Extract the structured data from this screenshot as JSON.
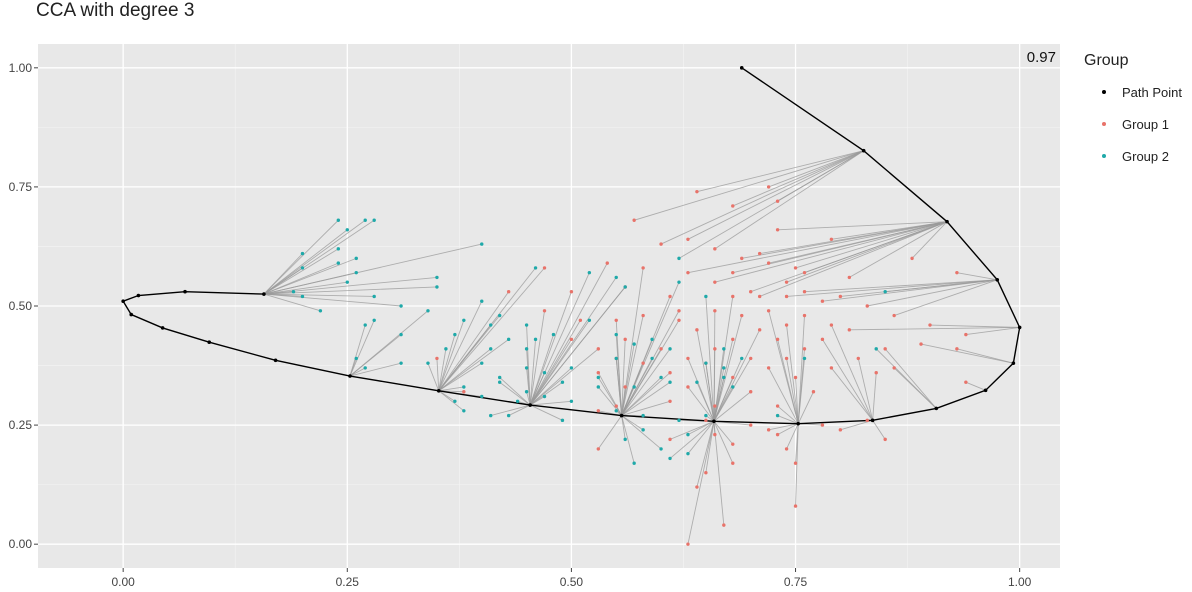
{
  "chart_data": {
    "type": "scatter",
    "title": "CCA with degree 3",
    "annotation": "0.97",
    "xlim": [
      -0.095,
      1.045
    ],
    "ylim": [
      -0.05,
      1.05
    ],
    "x_ticks": [
      0,
      0.25,
      0.5,
      0.75,
      1
    ],
    "x_tick_labels": [
      "0.00",
      "0.25",
      "0.50",
      "0.75",
      "1.00"
    ],
    "y_ticks": [
      0,
      0.25,
      0.5,
      0.75,
      1
    ],
    "y_tick_labels": [
      "0.00",
      "0.25",
      "0.50",
      "0.75",
      "1.00"
    ],
    "grid": true,
    "legend": {
      "title": "Group",
      "placement": "right",
      "items": [
        {
          "label": "Path Point",
          "color": "#000000"
        },
        {
          "label": "Group 1",
          "color": "#e8736a"
        },
        {
          "label": "Group 2",
          "color": "#1fa9a9"
        }
      ]
    },
    "path": [
      [
        0.69,
        1.0
      ],
      [
        0.826,
        0.826
      ],
      [
        0.919,
        0.677
      ],
      [
        0.975,
        0.555
      ],
      [
        1.0,
        0.455
      ],
      [
        0.993,
        0.38
      ],
      [
        0.962,
        0.323
      ],
      [
        0.907,
        0.285
      ],
      [
        0.836,
        0.26
      ],
      [
        0.753,
        0.253
      ],
      [
        0.659,
        0.258
      ],
      [
        0.556,
        0.27
      ],
      [
        0.454,
        0.292
      ],
      [
        0.352,
        0.322
      ],
      [
        0.253,
        0.353
      ],
      [
        0.17,
        0.386
      ],
      [
        0.096,
        0.424
      ],
      [
        0.044,
        0.454
      ],
      [
        0.009,
        0.482
      ],
      [
        0.0,
        0.51
      ],
      [
        0.017,
        0.522
      ],
      [
        0.069,
        0.53
      ],
      [
        0.157,
        0.525
      ]
    ],
    "group1": [
      [
        0.72,
        0.75
      ],
      [
        0.64,
        0.74
      ],
      [
        0.73,
        0.72
      ],
      [
        0.68,
        0.71
      ],
      [
        0.57,
        0.68
      ],
      [
        0.73,
        0.66
      ],
      [
        0.63,
        0.64
      ],
      [
        0.79,
        0.64
      ],
      [
        0.6,
        0.63
      ],
      [
        0.66,
        0.62
      ],
      [
        0.71,
        0.61
      ],
      [
        0.69,
        0.6
      ],
      [
        0.72,
        0.59
      ],
      [
        0.88,
        0.6
      ],
      [
        0.54,
        0.59
      ],
      [
        0.47,
        0.58
      ],
      [
        0.58,
        0.58
      ],
      [
        0.75,
        0.58
      ],
      [
        0.63,
        0.57
      ],
      [
        0.68,
        0.57
      ],
      [
        0.76,
        0.57
      ],
      [
        0.93,
        0.57
      ],
      [
        0.81,
        0.56
      ],
      [
        0.66,
        0.55
      ],
      [
        0.74,
        0.55
      ],
      [
        0.5,
        0.53
      ],
      [
        0.56,
        0.54
      ],
      [
        0.7,
        0.53
      ],
      [
        0.76,
        0.53
      ],
      [
        0.43,
        0.53
      ],
      [
        0.61,
        0.52
      ],
      [
        0.68,
        0.52
      ],
      [
        0.71,
        0.52
      ],
      [
        0.74,
        0.52
      ],
      [
        0.8,
        0.52
      ],
      [
        0.78,
        0.51
      ],
      [
        0.47,
        0.49
      ],
      [
        0.62,
        0.49
      ],
      [
        0.66,
        0.49
      ],
      [
        0.72,
        0.49
      ],
      [
        0.83,
        0.5
      ],
      [
        0.58,
        0.48
      ],
      [
        0.69,
        0.48
      ],
      [
        0.76,
        0.48
      ],
      [
        0.86,
        0.48
      ],
      [
        0.51,
        0.47
      ],
      [
        0.55,
        0.47
      ],
      [
        0.62,
        0.47
      ],
      [
        0.74,
        0.46
      ],
      [
        0.79,
        0.46
      ],
      [
        0.9,
        0.46
      ],
      [
        0.64,
        0.45
      ],
      [
        0.71,
        0.45
      ],
      [
        0.81,
        0.45
      ],
      [
        0.94,
        0.44
      ],
      [
        0.5,
        0.43
      ],
      [
        0.56,
        0.43
      ],
      [
        0.68,
        0.43
      ],
      [
        0.73,
        0.43
      ],
      [
        0.78,
        0.43
      ],
      [
        0.89,
        0.42
      ],
      [
        0.53,
        0.41
      ],
      [
        0.6,
        0.41
      ],
      [
        0.66,
        0.41
      ],
      [
        0.76,
        0.41
      ],
      [
        0.85,
        0.41
      ],
      [
        0.93,
        0.41
      ],
      [
        0.55,
        0.39
      ],
      [
        0.63,
        0.39
      ],
      [
        0.7,
        0.39
      ],
      [
        0.74,
        0.39
      ],
      [
        0.82,
        0.39
      ],
      [
        0.35,
        0.39
      ],
      [
        0.58,
        0.38
      ],
      [
        0.65,
        0.38
      ],
      [
        0.72,
        0.37
      ],
      [
        0.79,
        0.37
      ],
      [
        0.86,
        0.37
      ],
      [
        0.53,
        0.36
      ],
      [
        0.61,
        0.36
      ],
      [
        0.68,
        0.35
      ],
      [
        0.75,
        0.35
      ],
      [
        0.84,
        0.36
      ],
      [
        0.94,
        0.34
      ],
      [
        0.56,
        0.33
      ],
      [
        0.63,
        0.33
      ],
      [
        0.7,
        0.32
      ],
      [
        0.77,
        0.32
      ],
      [
        0.38,
        0.32
      ],
      [
        0.61,
        0.3
      ],
      [
        0.66,
        0.29
      ],
      [
        0.73,
        0.29
      ],
      [
        0.55,
        0.29
      ],
      [
        0.53,
        0.28
      ],
      [
        0.65,
        0.26
      ],
      [
        0.7,
        0.25
      ],
      [
        0.78,
        0.25
      ],
      [
        0.83,
        0.26
      ],
      [
        0.72,
        0.24
      ],
      [
        0.8,
        0.24
      ],
      [
        0.66,
        0.23
      ],
      [
        0.73,
        0.23
      ],
      [
        0.85,
        0.22
      ],
      [
        0.61,
        0.22
      ],
      [
        0.68,
        0.21
      ],
      [
        0.74,
        0.2
      ],
      [
        0.53,
        0.2
      ],
      [
        0.68,
        0.17
      ],
      [
        0.75,
        0.17
      ],
      [
        0.65,
        0.15
      ],
      [
        0.64,
        0.12
      ],
      [
        0.75,
        0.08
      ],
      [
        0.67,
        0.04
      ],
      [
        0.63,
        0.0
      ]
    ],
    "group2": [
      [
        0.24,
        0.68
      ],
      [
        0.27,
        0.68
      ],
      [
        0.28,
        0.68
      ],
      [
        0.25,
        0.66
      ],
      [
        0.4,
        0.63
      ],
      [
        0.24,
        0.62
      ],
      [
        0.2,
        0.61
      ],
      [
        0.26,
        0.6
      ],
      [
        0.24,
        0.59
      ],
      [
        0.62,
        0.6
      ],
      [
        0.2,
        0.58
      ],
      [
        0.46,
        0.58
      ],
      [
        0.52,
        0.57
      ],
      [
        0.26,
        0.57
      ],
      [
        0.35,
        0.56
      ],
      [
        0.55,
        0.56
      ],
      [
        0.62,
        0.55
      ],
      [
        0.2,
        0.52
      ],
      [
        0.19,
        0.53
      ],
      [
        0.25,
        0.55
      ],
      [
        0.28,
        0.52
      ],
      [
        0.35,
        0.54
      ],
      [
        0.4,
        0.51
      ],
      [
        0.56,
        0.54
      ],
      [
        0.65,
        0.52
      ],
      [
        0.31,
        0.5
      ],
      [
        0.34,
        0.49
      ],
      [
        0.28,
        0.47
      ],
      [
        0.22,
        0.49
      ],
      [
        0.27,
        0.46
      ],
      [
        0.38,
        0.47
      ],
      [
        0.42,
        0.48
      ],
      [
        0.41,
        0.46
      ],
      [
        0.45,
        0.46
      ],
      [
        0.52,
        0.47
      ],
      [
        0.31,
        0.44
      ],
      [
        0.37,
        0.44
      ],
      [
        0.43,
        0.43
      ],
      [
        0.46,
        0.43
      ],
      [
        0.48,
        0.44
      ],
      [
        0.55,
        0.44
      ],
      [
        0.59,
        0.43
      ],
      [
        0.36,
        0.41
      ],
      [
        0.41,
        0.41
      ],
      [
        0.45,
        0.41
      ],
      [
        0.57,
        0.42
      ],
      [
        0.61,
        0.41
      ],
      [
        0.67,
        0.41
      ],
      [
        0.84,
        0.41
      ],
      [
        0.26,
        0.39
      ],
      [
        0.31,
        0.38
      ],
      [
        0.4,
        0.38
      ],
      [
        0.45,
        0.37
      ],
      [
        0.5,
        0.37
      ],
      [
        0.55,
        0.39
      ],
      [
        0.59,
        0.39
      ],
      [
        0.65,
        0.38
      ],
      [
        0.69,
        0.39
      ],
      [
        0.76,
        0.39
      ],
      [
        0.27,
        0.37
      ],
      [
        0.34,
        0.38
      ],
      [
        0.42,
        0.35
      ],
      [
        0.47,
        0.36
      ],
      [
        0.53,
        0.35
      ],
      [
        0.6,
        0.35
      ],
      [
        0.67,
        0.35
      ],
      [
        0.38,
        0.33
      ],
      [
        0.42,
        0.34
      ],
      [
        0.45,
        0.32
      ],
      [
        0.49,
        0.34
      ],
      [
        0.53,
        0.33
      ],
      [
        0.57,
        0.33
      ],
      [
        0.61,
        0.34
      ],
      [
        0.64,
        0.34
      ],
      [
        0.68,
        0.33
      ],
      [
        0.37,
        0.3
      ],
      [
        0.4,
        0.31
      ],
      [
        0.44,
        0.3
      ],
      [
        0.47,
        0.31
      ],
      [
        0.5,
        0.3
      ],
      [
        0.38,
        0.28
      ],
      [
        0.41,
        0.27
      ],
      [
        0.43,
        0.27
      ],
      [
        0.49,
        0.26
      ],
      [
        0.55,
        0.28
      ],
      [
        0.58,
        0.27
      ],
      [
        0.62,
        0.26
      ],
      [
        0.65,
        0.27
      ],
      [
        0.73,
        0.27
      ],
      [
        0.58,
        0.24
      ],
      [
        0.63,
        0.23
      ],
      [
        0.56,
        0.22
      ],
      [
        0.6,
        0.2
      ],
      [
        0.63,
        0.19
      ],
      [
        0.61,
        0.18
      ],
      [
        0.57,
        0.17
      ],
      [
        0.85,
        0.53
      ],
      [
        0.67,
        0.37
      ]
    ]
  }
}
